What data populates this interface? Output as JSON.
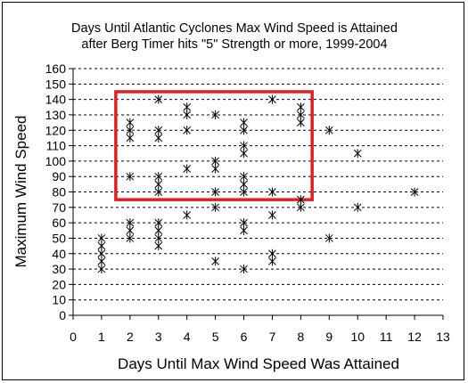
{
  "chart_data": {
    "type": "scatter",
    "title_lines": [
      "Days Until Atlantic Cyclones Max Wind Speed is Attained",
      "after Berg Timer hits \"5\" Strength or more, 1999-2004"
    ],
    "xlabel": "Days Until Max Wind Speed Was Attained",
    "ylabel": "Maximum Wind Speed",
    "xlim": [
      0,
      13
    ],
    "ylim": [
      0,
      160
    ],
    "x_ticks": [
      "0",
      "1",
      "2",
      "3",
      "4",
      "5",
      "6",
      "7",
      "8",
      "9",
      "10",
      "11",
      "12",
      "13"
    ],
    "y_ticks": [
      "0",
      "10",
      "20",
      "30",
      "40",
      "50",
      "60",
      "70",
      "80",
      "90",
      "100",
      "110",
      "120",
      "130",
      "140",
      "150",
      "160"
    ],
    "grid": "horizontal dashed",
    "marker": "asterisk",
    "points": [
      {
        "x": 1,
        "y": 30
      },
      {
        "x": 1,
        "y": 35
      },
      {
        "x": 1,
        "y": 40
      },
      {
        "x": 1,
        "y": 45
      },
      {
        "x": 1,
        "y": 50
      },
      {
        "x": 2,
        "y": 50
      },
      {
        "x": 2,
        "y": 55
      },
      {
        "x": 2,
        "y": 60
      },
      {
        "x": 2,
        "y": 90
      },
      {
        "x": 2,
        "y": 115
      },
      {
        "x": 2,
        "y": 120
      },
      {
        "x": 2,
        "y": 125
      },
      {
        "x": 3,
        "y": 45
      },
      {
        "x": 3,
        "y": 50
      },
      {
        "x": 3,
        "y": 55
      },
      {
        "x": 3,
        "y": 60
      },
      {
        "x": 3,
        "y": 80
      },
      {
        "x": 3,
        "y": 85
      },
      {
        "x": 3,
        "y": 90
      },
      {
        "x": 3,
        "y": 115
      },
      {
        "x": 3,
        "y": 120
      },
      {
        "x": 3,
        "y": 140
      },
      {
        "x": 4,
        "y": 65
      },
      {
        "x": 4,
        "y": 95
      },
      {
        "x": 4,
        "y": 120
      },
      {
        "x": 4,
        "y": 130
      },
      {
        "x": 4,
        "y": 135
      },
      {
        "x": 5,
        "y": 35
      },
      {
        "x": 5,
        "y": 70
      },
      {
        "x": 5,
        "y": 80
      },
      {
        "x": 5,
        "y": 95
      },
      {
        "x": 5,
        "y": 100
      },
      {
        "x": 5,
        "y": 130
      },
      {
        "x": 6,
        "y": 30
      },
      {
        "x": 6,
        "y": 55
      },
      {
        "x": 6,
        "y": 60
      },
      {
        "x": 6,
        "y": 80
      },
      {
        "x": 6,
        "y": 85
      },
      {
        "x": 6,
        "y": 90
      },
      {
        "x": 6,
        "y": 105
      },
      {
        "x": 6,
        "y": 110
      },
      {
        "x": 6,
        "y": 120
      },
      {
        "x": 6,
        "y": 125
      },
      {
        "x": 7,
        "y": 35
      },
      {
        "x": 7,
        "y": 40
      },
      {
        "x": 7,
        "y": 65
      },
      {
        "x": 7,
        "y": 80
      },
      {
        "x": 7,
        "y": 140
      },
      {
        "x": 8,
        "y": 70
      },
      {
        "x": 8,
        "y": 75
      },
      {
        "x": 8,
        "y": 125
      },
      {
        "x": 8,
        "y": 130
      },
      {
        "x": 8,
        "y": 135
      },
      {
        "x": 9,
        "y": 50
      },
      {
        "x": 9,
        "y": 120
      },
      {
        "x": 10,
        "y": 70
      },
      {
        "x": 10,
        "y": 105
      },
      {
        "x": 12,
        "y": 80
      }
    ],
    "highlight_box": {
      "x": [
        1.5,
        8.4
      ],
      "y": [
        75,
        145
      ],
      "color": "#e02020"
    }
  }
}
